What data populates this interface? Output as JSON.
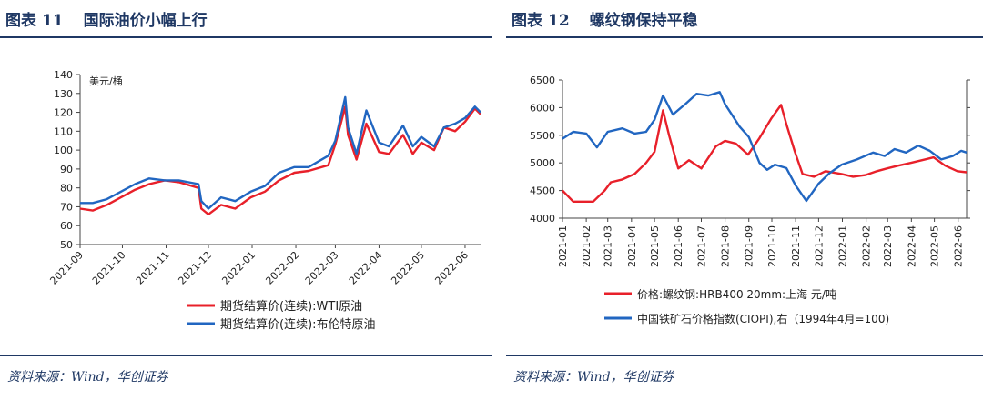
{
  "figures": [
    {
      "label": "图表",
      "number": "11",
      "title": "国际油价小幅上行",
      "source": "资料来源：Wind，华创证券"
    },
    {
      "label": "图表",
      "number": "12",
      "title": "螺纹钢保持平稳",
      "source": "资料来源：Wind，华创证券"
    }
  ],
  "chart_data": [
    {
      "type": "line",
      "title": "",
      "unit_label": "美元/桶",
      "ylim": [
        50,
        140
      ],
      "yticks": [
        50,
        60,
        70,
        80,
        90,
        100,
        110,
        120,
        130,
        140
      ],
      "xlim": [
        "2021-09-01",
        "2022-06-12"
      ],
      "xticks": [
        "2021-09",
        "2021-10",
        "2021-11",
        "2021-12",
        "2022-01",
        "2022-02",
        "2022-03",
        "2022-04",
        "2022-05",
        "2022-06"
      ],
      "grid": false,
      "legend_position": "bottom",
      "series": [
        {
          "name": "期货结算价(连续):WTI原油",
          "color": "#e8202a",
          "points": [
            [
              "2021-09-01",
              69
            ],
            [
              "2021-09-10",
              68
            ],
            [
              "2021-09-20",
              71
            ],
            [
              "2021-09-30",
              75
            ],
            [
              "2021-10-10",
              79
            ],
            [
              "2021-10-20",
              82
            ],
            [
              "2021-10-31",
              84
            ],
            [
              "2021-11-10",
              83
            ],
            [
              "2021-11-24",
              80
            ],
            [
              "2021-11-26",
              69
            ],
            [
              "2021-12-01",
              66
            ],
            [
              "2021-12-10",
              71
            ],
            [
              "2021-12-20",
              69
            ],
            [
              "2021-12-31",
              75
            ],
            [
              "2022-01-10",
              78
            ],
            [
              "2022-01-20",
              84
            ],
            [
              "2022-01-31",
              88
            ],
            [
              "2022-02-10",
              89
            ],
            [
              "2022-02-24",
              92
            ],
            [
              "2022-03-01",
              103
            ],
            [
              "2022-03-08",
              123
            ],
            [
              "2022-03-10",
              108
            ],
            [
              "2022-03-16",
              95
            ],
            [
              "2022-03-23",
              114
            ],
            [
              "2022-04-01",
              99
            ],
            [
              "2022-04-08",
              98
            ],
            [
              "2022-04-18",
              108
            ],
            [
              "2022-04-25",
              98
            ],
            [
              "2022-05-01",
              104
            ],
            [
              "2022-05-10",
              100
            ],
            [
              "2022-05-17",
              112
            ],
            [
              "2022-05-25",
              110
            ],
            [
              "2022-06-01",
              115
            ],
            [
              "2022-06-08",
              122
            ],
            [
              "2022-06-12",
              119
            ]
          ]
        },
        {
          "name": "期货结算价(连续):布伦特原油",
          "color": "#2166c1",
          "points": [
            [
              "2021-09-01",
              72
            ],
            [
              "2021-09-10",
              72
            ],
            [
              "2021-09-20",
              74
            ],
            [
              "2021-09-30",
              78
            ],
            [
              "2021-10-10",
              82
            ],
            [
              "2021-10-20",
              85
            ],
            [
              "2021-10-31",
              84
            ],
            [
              "2021-11-10",
              84
            ],
            [
              "2021-11-24",
              82
            ],
            [
              "2021-11-26",
              73
            ],
            [
              "2021-12-01",
              69
            ],
            [
              "2021-12-10",
              75
            ],
            [
              "2021-12-20",
              73
            ],
            [
              "2021-12-31",
              78
            ],
            [
              "2022-01-10",
              81
            ],
            [
              "2022-01-20",
              88
            ],
            [
              "2022-01-31",
              91
            ],
            [
              "2022-02-10",
              91
            ],
            [
              "2022-02-24",
              97
            ],
            [
              "2022-03-01",
              105
            ],
            [
              "2022-03-08",
              128
            ],
            [
              "2022-03-10",
              112
            ],
            [
              "2022-03-16",
              98
            ],
            [
              "2022-03-23",
              121
            ],
            [
              "2022-04-01",
              104
            ],
            [
              "2022-04-08",
              102
            ],
            [
              "2022-04-18",
              113
            ],
            [
              "2022-04-25",
              102
            ],
            [
              "2022-05-01",
              107
            ],
            [
              "2022-05-10",
              102
            ],
            [
              "2022-05-17",
              112
            ],
            [
              "2022-05-25",
              114
            ],
            [
              "2022-06-01",
              117
            ],
            [
              "2022-06-08",
              123
            ],
            [
              "2022-06-12",
              120
            ]
          ]
        }
      ]
    },
    {
      "type": "line",
      "title": "",
      "ylim_left": [
        4000,
        6500
      ],
      "yticks_left": [
        4000,
        4500,
        5000,
        5500,
        6000,
        6500
      ],
      "ylim_right": [
        100,
        900
      ],
      "xlim": [
        "2021-01-01",
        "2022-06-12"
      ],
      "xticks": [
        "2021-01",
        "2021-02",
        "2021-03",
        "2021-04",
        "2021-05",
        "2021-06",
        "2021-07",
        "2021-08",
        "2021-09",
        "2021-10",
        "2021-11",
        "2021-12",
        "2022-01",
        "2022-02",
        "2022-03",
        "2022-04",
        "2022-05",
        "2022-06"
      ],
      "grid": false,
      "legend_position": "bottom",
      "series": [
        {
          "name": "价格:螺纹钢:HRB400 20mm:上海 元/吨",
          "axis": "left",
          "color": "#e8202a",
          "points": [
            [
              "2021-01-01",
              4500
            ],
            [
              "2021-01-15",
              4300
            ],
            [
              "2021-02-10",
              4300
            ],
            [
              "2021-02-25",
              4500
            ],
            [
              "2021-03-05",
              4650
            ],
            [
              "2021-03-20",
              4700
            ],
            [
              "2021-04-05",
              4800
            ],
            [
              "2021-04-20",
              5000
            ],
            [
              "2021-05-01",
              5200
            ],
            [
              "2021-05-12",
              5950
            ],
            [
              "2021-05-20",
              5500
            ],
            [
              "2021-06-01",
              4900
            ],
            [
              "2021-06-15",
              5050
            ],
            [
              "2021-07-01",
              4900
            ],
            [
              "2021-07-20",
              5300
            ],
            [
              "2021-08-01",
              5400
            ],
            [
              "2021-08-15",
              5350
            ],
            [
              "2021-08-31",
              5150
            ],
            [
              "2021-09-15",
              5450
            ],
            [
              "2021-09-30",
              5800
            ],
            [
              "2021-10-13",
              6050
            ],
            [
              "2021-10-20",
              5700
            ],
            [
              "2021-10-31",
              5200
            ],
            [
              "2021-11-10",
              4800
            ],
            [
              "2021-11-25",
              4750
            ],
            [
              "2021-12-10",
              4850
            ],
            [
              "2021-12-31",
              4800
            ],
            [
              "2022-01-15",
              4750
            ],
            [
              "2022-01-31",
              4780
            ],
            [
              "2022-02-15",
              4850
            ],
            [
              "2022-02-28",
              4900
            ],
            [
              "2022-03-15",
              4950
            ],
            [
              "2022-03-31",
              5000
            ],
            [
              "2022-04-15",
              5050
            ],
            [
              "2022-04-30",
              5100
            ],
            [
              "2022-05-15",
              4950
            ],
            [
              "2022-05-31",
              4850
            ],
            [
              "2022-06-12",
              4830
            ]
          ]
        },
        {
          "name": "中国铁矿石价格指数(CIOPI),右（1994年4月=100)",
          "axis": "right",
          "color": "#2166c1",
          "points": [
            [
              "2021-01-01",
              560
            ],
            [
              "2021-01-15",
              600
            ],
            [
              "2021-02-01",
              590
            ],
            [
              "2021-02-15",
              510
            ],
            [
              "2021-03-01",
              600
            ],
            [
              "2021-03-20",
              620
            ],
            [
              "2021-04-05",
              590
            ],
            [
              "2021-04-20",
              600
            ],
            [
              "2021-05-01",
              670
            ],
            [
              "2021-05-12",
              810
            ],
            [
              "2021-05-25",
              700
            ],
            [
              "2021-06-10",
              760
            ],
            [
              "2021-06-25",
              820
            ],
            [
              "2021-07-10",
              810
            ],
            [
              "2021-07-25",
              830
            ],
            [
              "2021-08-01",
              760
            ],
            [
              "2021-08-20",
              630
            ],
            [
              "2021-09-01",
              570
            ],
            [
              "2021-09-15",
              420
            ],
            [
              "2021-09-25",
              380
            ],
            [
              "2021-10-05",
              410
            ],
            [
              "2021-10-20",
              390
            ],
            [
              "2021-11-01",
              290
            ],
            [
              "2021-11-15",
              200
            ],
            [
              "2021-12-01",
              300
            ],
            [
              "2021-12-15",
              360
            ],
            [
              "2021-12-31",
              410
            ],
            [
              "2022-01-20",
              440
            ],
            [
              "2022-02-10",
              480
            ],
            [
              "2022-02-25",
              460
            ],
            [
              "2022-03-10",
              500
            ],
            [
              "2022-03-25",
              480
            ],
            [
              "2022-04-10",
              520
            ],
            [
              "2022-04-25",
              490
            ],
            [
              "2022-05-10",
              440
            ],
            [
              "2022-05-25",
              460
            ],
            [
              "2022-06-05",
              490
            ],
            [
              "2022-06-12",
              480
            ]
          ]
        }
      ]
    }
  ]
}
